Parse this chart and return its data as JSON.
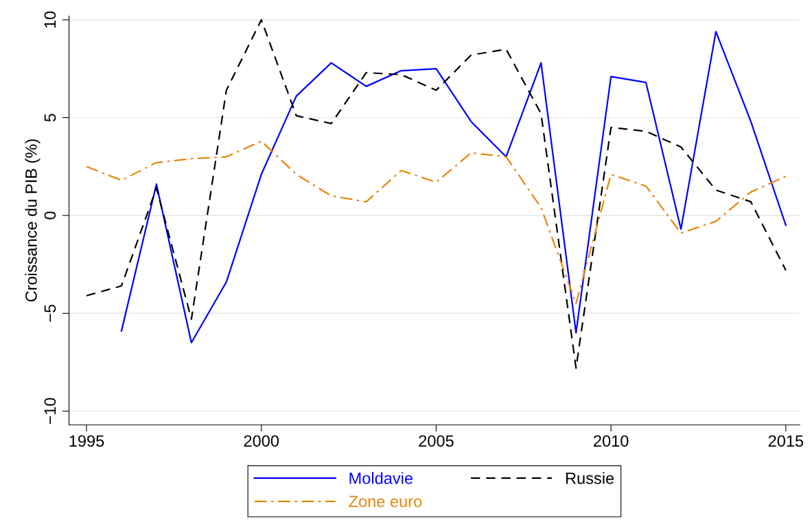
{
  "chart_data": {
    "type": "line",
    "ylabel": "Croissance du PIB (%)",
    "x": [
      1995,
      1996,
      1997,
      1998,
      1999,
      2000,
      2001,
      2002,
      2003,
      2004,
      2005,
      2006,
      2007,
      2008,
      2009,
      2010,
      2011,
      2012,
      2013,
      2014,
      2015
    ],
    "series": [
      {
        "name": "Moldavie",
        "color": "#0000ff",
        "line_style": "solid",
        "values": [
          null,
          -5.9,
          1.6,
          -6.5,
          -3.4,
          2.1,
          6.1,
          7.8,
          6.6,
          7.4,
          7.5,
          4.8,
          3.0,
          7.8,
          -6.0,
          7.1,
          6.8,
          -0.7,
          9.4,
          4.8,
          -0.5
        ]
      },
      {
        "name": "Russie",
        "color": "#000000",
        "line_style": "dashed",
        "values": [
          -4.1,
          -3.6,
          1.4,
          -5.3,
          6.4,
          10.0,
          5.1,
          4.7,
          7.3,
          7.2,
          6.4,
          8.2,
          8.5,
          5.2,
          -7.8,
          4.5,
          4.3,
          3.5,
          1.3,
          0.7,
          -2.8
        ]
      },
      {
        "name": "Zone euro",
        "color": "#e8860c",
        "line_style": "dashdot",
        "values": [
          2.5,
          1.8,
          2.7,
          2.9,
          3.0,
          3.8,
          2.1,
          1.0,
          0.7,
          2.3,
          1.7,
          3.2,
          3.0,
          0.4,
          -4.5,
          2.1,
          1.5,
          -0.9,
          -0.3,
          1.2,
          2.0
        ]
      }
    ],
    "xlim": [
      1994.5,
      2015.4
    ],
    "xticks": [
      1995,
      2000,
      2005,
      2010,
      2015
    ],
    "ylim": [
      -10.7,
      10.2
    ],
    "yticks": [
      {
        "value": -10,
        "label": "−10"
      },
      {
        "value": -5,
        "label": "−5"
      },
      0,
      5,
      10
    ],
    "grid": "y",
    "legend": "bottom",
    "marker": "none"
  }
}
